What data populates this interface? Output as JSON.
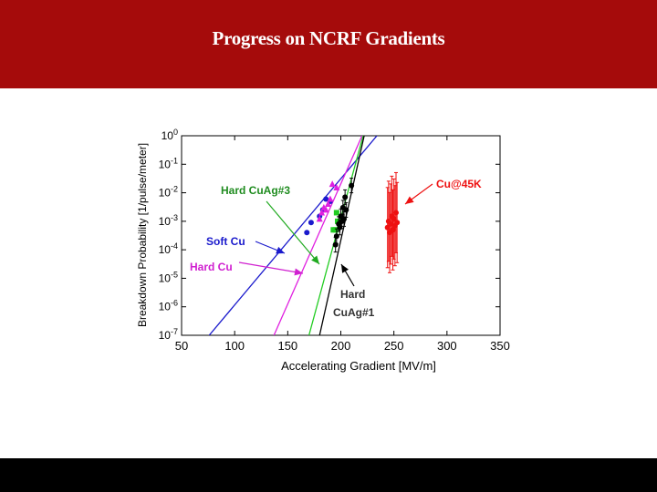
{
  "slide": {
    "title": "Progress on NCRF Gradients",
    "header_color": "#a50b0b",
    "footer_color": "#000000"
  },
  "chart_data": {
    "type": "scatter",
    "title": "",
    "xlabel": "Accelerating Gradient [MV/m]",
    "ylabel": "Breakdown  Probability [1/pulse/meter]",
    "xlim": [
      50,
      350
    ],
    "ylim": [
      1e-07,
      1
    ],
    "yscale": "log",
    "x_ticks": [
      "50",
      "100",
      "150",
      "200",
      "250",
      "300",
      "350"
    ],
    "y_tick_exponents": [
      "0",
      "-1",
      "-2",
      "-3",
      "-4",
      "-5",
      "-6",
      "-7"
    ],
    "grid": false,
    "series": [
      {
        "key": "soft_cu",
        "name": "Soft Cu",
        "color": "#1a1acc",
        "marker": "circle",
        "x": [
          168,
          172,
          180,
          183,
          186,
          190
        ],
        "y": [
          0.0004,
          0.0009,
          0.0015,
          0.0025,
          0.006,
          0.005
        ],
        "fit": {
          "x": [
            76,
            234
          ],
          "y": [
            1e-07,
            1
          ]
        }
      },
      {
        "key": "hard_cu",
        "name": "Hard Cu",
        "color": "#e020e0",
        "marker": "triangle",
        "x": [
          180,
          182,
          184,
          186,
          188,
          190,
          192,
          196
        ],
        "y": [
          0.0012,
          0.002,
          0.003,
          0.0025,
          0.004,
          0.006,
          0.02,
          0.015
        ],
        "fit": {
          "x": [
            137,
            220
          ],
          "y": [
            1e-07,
            1
          ]
        }
      },
      {
        "key": "hard_cuag3",
        "name": "Hard CuAg#3",
        "color": "#20cc20",
        "marker": "square",
        "x": [
          193,
          195,
          196,
          197
        ],
        "y": [
          0.0005,
          0.0005,
          0.002,
          0.001
        ],
        "fit": {
          "x": [
            170,
            221
          ],
          "y": [
            1e-07,
            1
          ]
        }
      },
      {
        "key": "hard_cuag1",
        "name": "Hard CuAg#1",
        "color": "#000000",
        "marker": "circle",
        "x": [
          195,
          196,
          198,
          199,
          200,
          201,
          202,
          203,
          204,
          205,
          210
        ],
        "y": [
          0.00015,
          0.0003,
          0.0008,
          0.0006,
          0.0015,
          0.001,
          0.003,
          0.0012,
          0.007,
          0.0025,
          0.018
        ],
        "fit": {
          "x": [
            180,
            222
          ],
          "y": [
            1e-07,
            1
          ]
        }
      },
      {
        "key": "cu_45k",
        "name": "Cu@45K",
        "color": "#ee1111",
        "marker": "circle",
        "x": [
          244,
          245,
          246,
          247,
          248,
          249,
          250,
          251,
          252,
          253
        ],
        "y": [
          0.0006,
          0.001,
          0.0004,
          0.0008,
          0.0015,
          0.0005,
          0.0012,
          0.0007,
          0.002,
          0.0009
        ]
      }
    ],
    "annotations": [
      {
        "text": "Hard CuAg#3",
        "color": "#208c20"
      },
      {
        "text": "Soft Cu",
        "color": "#1a1acc"
      },
      {
        "text": "Hard Cu",
        "color": "#d020d0"
      },
      {
        "text": "Hard",
        "color": "#333333"
      },
      {
        "text": "CuAg#1",
        "color": "#333333"
      },
      {
        "text": "Cu@45K",
        "color": "#ee1111"
      }
    ]
  }
}
